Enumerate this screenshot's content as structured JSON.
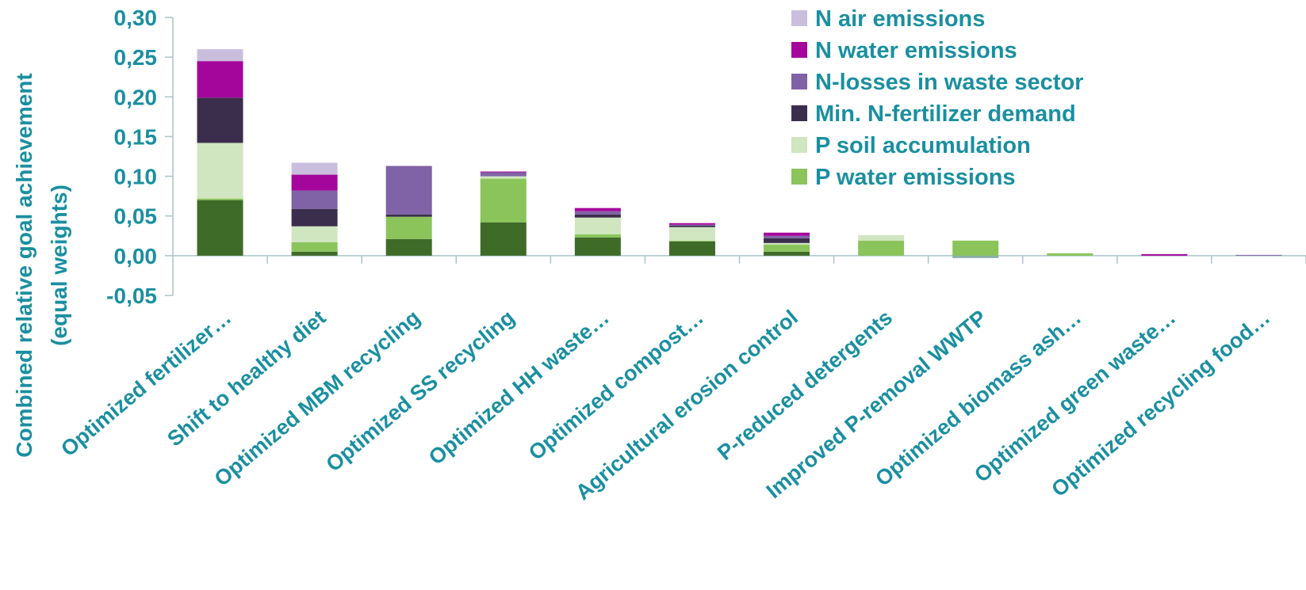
{
  "chart_data": {
    "type": "bar",
    "stacked": true,
    "ylabel_lines": [
      "Combined relative goal achievement",
      "(equal weights)"
    ],
    "ylim": [
      -0.05,
      0.3
    ],
    "yticks": [
      "0,30",
      "0,25",
      "0,20",
      "0,15",
      "0,10",
      "0,05",
      "0,00",
      "-0,05"
    ],
    "ytick_values": [
      0.3,
      0.25,
      0.2,
      0.15,
      0.1,
      0.05,
      0.0,
      -0.05
    ],
    "legend_position": "top-right",
    "categories": [
      "Optimized fertilizer…",
      "Shift to healthy diet",
      "Optimized MBM recycling",
      "Optimized SS recycling",
      "Optimized HH waste…",
      "Optimized compost…",
      "Agricultural erosion control",
      "P-reduced detergents",
      "Improved P-removal WWTP",
      "Optimized biomass ash…",
      "Optimized green waste…",
      "Optimized recycling food…"
    ],
    "base_segment": {
      "color": "#3f6b28",
      "values": [
        0.07,
        0.005,
        0.021,
        0.042,
        0.023,
        0.018,
        0.005,
        0.0,
        0.0,
        0.0,
        0.0,
        0.0
      ]
    },
    "series": [
      {
        "name": "P water emissions",
        "color": "#8ac45a",
        "values": [
          0.002,
          0.012,
          0.028,
          0.055,
          0.004,
          0.001,
          0.009,
          0.019,
          0.019,
          0.003,
          0.0,
          0.0
        ]
      },
      {
        "name": "P soil accumulation",
        "color": "#cfe6c0",
        "values": [
          0.07,
          0.02,
          0.0,
          0.003,
          0.021,
          0.017,
          0.002,
          0.007,
          0.0,
          0.0,
          0.0,
          0.0
        ]
      },
      {
        "name": "Min. N-fertilizer demand",
        "color": "#3b2e4d",
        "values": [
          0.057,
          0.022,
          0.003,
          0.0,
          0.004,
          0.002,
          0.006,
          0.0,
          0.0,
          0.0,
          0.0,
          0.0
        ]
      },
      {
        "name": "N-losses in waste sector",
        "color": "#8062a6",
        "values": [
          0.0,
          0.023,
          0.061,
          0.005,
          0.004,
          0.001,
          0.003,
          0.0,
          0.0,
          0.0,
          0.0,
          0.001
        ]
      },
      {
        "name": "N water emissions",
        "color": "#a4069b",
        "values": [
          0.046,
          0.02,
          0.0,
          0.001,
          0.004,
          0.002,
          0.004,
          0.0,
          0.0,
          0.0,
          0.002,
          0.0
        ]
      },
      {
        "name": "N air emissions",
        "color": "#c9bedd",
        "values": [
          0.015,
          0.015,
          0.0,
          0.0,
          0.0,
          0.0,
          0.0,
          0.0,
          0.0,
          0.0,
          0.0,
          0.0
        ]
      }
    ],
    "negative_values": [
      0,
      0,
      0,
      0,
      0,
      0,
      0,
      0,
      -0.003,
      0,
      0,
      0
    ],
    "negative_color": "#8ab0a8",
    "legend_order": [
      "N air emissions",
      "N water emissions",
      "N-losses in waste sector",
      "Min. N-fertilizer demand",
      "P soil accumulation",
      "P water emissions"
    ]
  }
}
